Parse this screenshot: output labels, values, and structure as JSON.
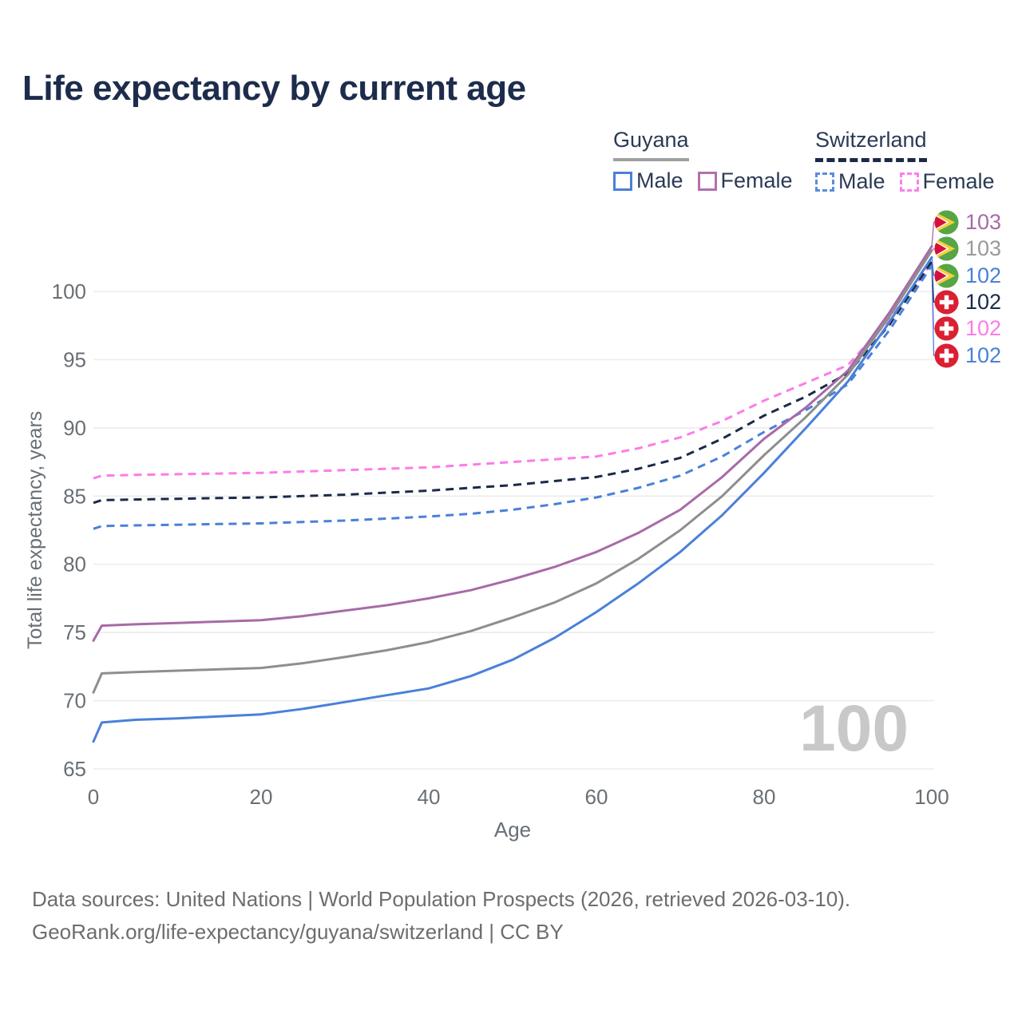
{
  "title": "Life expectancy by current age",
  "legend": {
    "groups": [
      {
        "title": "Guyana",
        "underline_style": "solid",
        "underline_color": "#a0a0a0",
        "items": [
          {
            "label": "Male",
            "color": "#4a80d9",
            "dashed": false
          },
          {
            "label": "Female",
            "color": "#b36fb0",
            "dashed": false
          }
        ]
      },
      {
        "title": "Switzerland",
        "underline_style": "dashed",
        "underline_color": "#1b2a48",
        "items": [
          {
            "label": "Male",
            "color": "#5b8ddb",
            "dashed": true
          },
          {
            "label": "Female",
            "color": "#fc7fe9",
            "dashed": true
          }
        ]
      }
    ]
  },
  "chart_data": {
    "type": "line",
    "title": "Life expectancy by current age",
    "xlabel": "Age",
    "ylabel": "Total life expectancy, years",
    "xlim": [
      0,
      100
    ],
    "ylim": [
      65,
      100
    ],
    "xticks": [
      0,
      20,
      40,
      60,
      80,
      100
    ],
    "yticks": [
      65,
      70,
      75,
      80,
      85,
      90,
      95,
      100
    ],
    "grid": "horizontal",
    "legend_position": "top-right",
    "ages": [
      0,
      1,
      5,
      10,
      15,
      20,
      25,
      30,
      35,
      40,
      45,
      50,
      55,
      60,
      65,
      70,
      75,
      80,
      85,
      90,
      95,
      100
    ],
    "series": [
      {
        "name": "Switzerland Female",
        "country": "Switzerland",
        "sex": "Female",
        "style": "dashed",
        "color": "#fb7ce8",
        "end_row": 4,
        "end_label": "102",
        "values": [
          86.3,
          86.5,
          86.55,
          86.6,
          86.65,
          86.7,
          86.8,
          86.9,
          87.0,
          87.1,
          87.3,
          87.5,
          87.7,
          87.9,
          88.5,
          89.3,
          90.5,
          92.0,
          93.3,
          94.6,
          98.0,
          102.1
        ]
      },
      {
        "name": "Switzerland Both sexes",
        "country": "Switzerland",
        "sex": "Both sexes",
        "style": "dashed",
        "color": "#1b2a48",
        "end_row": 3,
        "end_label": "102",
        "values": [
          84.5,
          84.7,
          84.75,
          84.8,
          84.85,
          84.9,
          85.0,
          85.1,
          85.25,
          85.4,
          85.6,
          85.8,
          86.1,
          86.4,
          87.0,
          87.8,
          89.2,
          90.9,
          92.3,
          94.0,
          97.6,
          102.2
        ]
      },
      {
        "name": "Switzerland Male",
        "country": "Switzerland",
        "sex": "Male",
        "style": "dashed",
        "color": "#4a80d9",
        "end_row": 5,
        "end_label": "102",
        "values": [
          82.6,
          82.8,
          82.85,
          82.9,
          82.95,
          83.0,
          83.1,
          83.2,
          83.35,
          83.5,
          83.7,
          84.0,
          84.4,
          84.9,
          85.6,
          86.5,
          87.9,
          89.7,
          91.3,
          93.2,
          97.2,
          101.9
        ]
      },
      {
        "name": "Guyana Female",
        "country": "Guyana",
        "sex": "Female",
        "style": "solid",
        "color": "#a76ba6",
        "end_row": 0,
        "end_label": "103",
        "values": [
          74.4,
          75.5,
          75.6,
          75.7,
          75.8,
          75.9,
          76.2,
          76.6,
          77.0,
          77.5,
          78.1,
          78.9,
          79.8,
          80.9,
          82.3,
          84.0,
          86.4,
          89.2,
          91.5,
          94.2,
          98.5,
          103.3
        ]
      },
      {
        "name": "Guyana Both sexes",
        "country": "Guyana",
        "sex": "Both sexes",
        "style": "solid",
        "color": "#8e8e8e",
        "end_row": 1,
        "end_label": "103",
        "values": [
          70.6,
          72.0,
          72.1,
          72.2,
          72.3,
          72.4,
          72.75,
          73.2,
          73.7,
          74.3,
          75.1,
          76.1,
          77.2,
          78.6,
          80.4,
          82.5,
          85.0,
          88.0,
          90.8,
          93.9,
          98.2,
          103.0
        ]
      },
      {
        "name": "Guyana Male",
        "country": "Guyana",
        "sex": "Male",
        "style": "solid",
        "color": "#4a80d9",
        "end_row": 2,
        "end_label": "102",
        "values": [
          67.0,
          68.4,
          68.6,
          68.7,
          68.85,
          69.0,
          69.4,
          69.9,
          70.4,
          70.9,
          71.8,
          73.0,
          74.6,
          76.5,
          78.6,
          80.9,
          83.6,
          86.7,
          90.0,
          93.4,
          97.8,
          102.5
        ]
      }
    ]
  },
  "end_labels": [
    {
      "value": "103",
      "color": "#a76ba6",
      "country": "Guyana",
      "series": "Guyana Female"
    },
    {
      "value": "103",
      "color": "#9a9a9a",
      "country": "Guyana",
      "series": "Guyana Both sexes"
    },
    {
      "value": "102",
      "color": "#4a80d9",
      "country": "Guyana",
      "series": "Guyana Male"
    },
    {
      "value": "102",
      "color": "#1b2a48",
      "country": "Switzerland",
      "series": "Switzerland Both sexes"
    },
    {
      "value": "102",
      "color": "#fb7ce8",
      "country": "Switzerland",
      "series": "Switzerland Female"
    },
    {
      "value": "102",
      "color": "#4a80d9",
      "country": "Switzerland",
      "series": "Switzerland Male"
    }
  ],
  "watermark": "100",
  "footer": {
    "line1": "Data sources: United Nations | World Population Prospects (2026, retrieved 2026-03-10).",
    "line2": "GeoRank.org/life-expectancy/guyana/switzerland | CC BY"
  }
}
